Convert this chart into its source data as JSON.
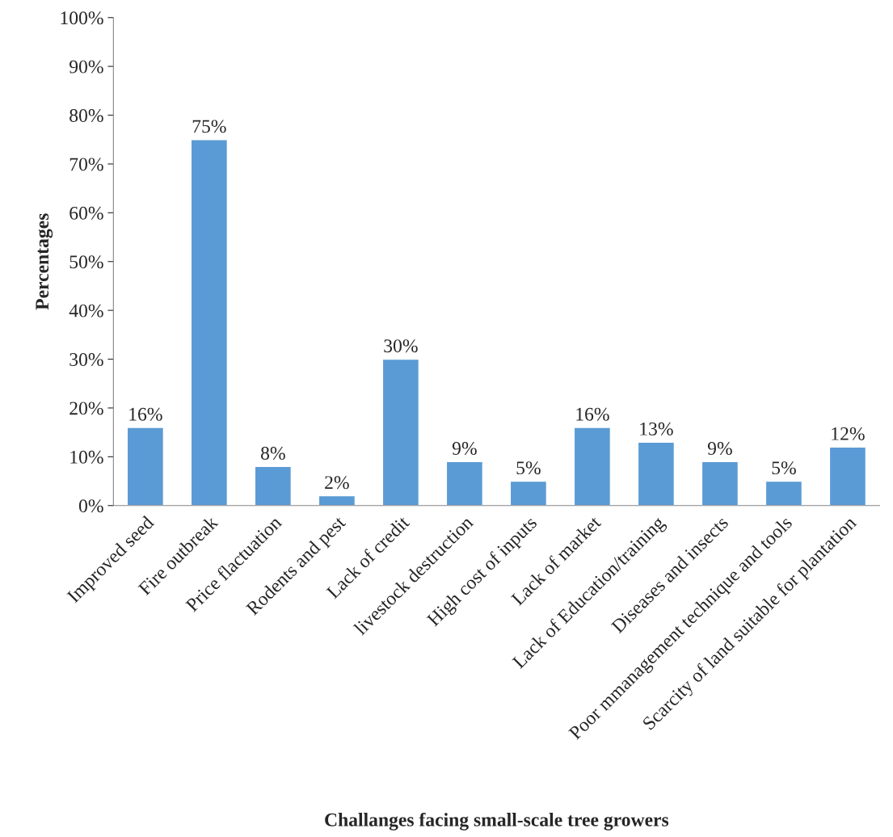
{
  "chart_data": {
    "type": "bar",
    "xlabel": "Challanges facing small-scale tree growers",
    "ylabel": "Percentages",
    "categories": [
      "Improved seed",
      "Fire outbreak",
      "Price flactuation",
      "Rodents and pest",
      "Lack of credit",
      "livestock destruction",
      "High cost of inputs",
      "Lack of market",
      "Lack of Education/training",
      "Diseases and insects",
      "Poor mmanagement technique and tools",
      "Scarcity of land suitable for plantation"
    ],
    "values": [
      16,
      75,
      8,
      2,
      30,
      9,
      5,
      16,
      13,
      9,
      5,
      12
    ],
    "value_labels": [
      "16%",
      "75%",
      "8%",
      "2%",
      "30%",
      "9%",
      "5%",
      "16%",
      "13%",
      "9%",
      "5%",
      "12%"
    ],
    "color": "#5b9bd5",
    "ylim": [
      0,
      100
    ],
    "yticks": [
      {
        "value": 0,
        "label": "0%"
      },
      {
        "value": 10,
        "label": "10%"
      },
      {
        "value": 20,
        "label": "20%"
      },
      {
        "value": 30,
        "label": "30%"
      },
      {
        "value": 40,
        "label": "40%"
      },
      {
        "value": 50,
        "label": "50%"
      },
      {
        "value": 60,
        "label": "60%"
      },
      {
        "value": 70,
        "label": "70%"
      },
      {
        "value": 80,
        "label": "80%"
      },
      {
        "value": 90,
        "label": "90%"
      },
      {
        "value": 100,
        "label": "100%"
      }
    ],
    "grid": false
  }
}
